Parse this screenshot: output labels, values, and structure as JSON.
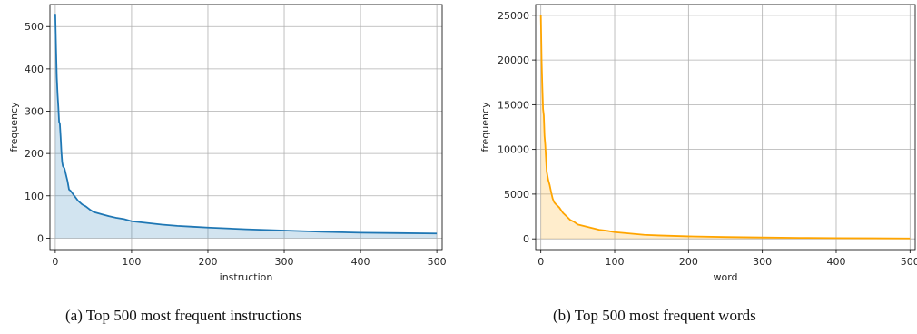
{
  "chart_data": [
    {
      "type": "area",
      "xlabel": "instruction",
      "ylabel": "frequency",
      "xlim": [
        -7,
        507
      ],
      "ylim": [
        -27,
        552
      ],
      "xticks": [
        0,
        100,
        200,
        300,
        400,
        500
      ],
      "yticks": [
        0,
        100,
        200,
        300,
        400,
        500
      ],
      "grid": true,
      "line_color": "#1f77b4",
      "fill_color": "#1f77b4",
      "fill_alpha": 0.2,
      "x": [
        0,
        1,
        2,
        3,
        4,
        5,
        6,
        7,
        8,
        9,
        10,
        12,
        14,
        16,
        18,
        20,
        25,
        30,
        35,
        40,
        45,
        50,
        60,
        70,
        80,
        90,
        100,
        120,
        140,
        160,
        180,
        200,
        250,
        300,
        350,
        400,
        450,
        500
      ],
      "y": [
        530,
        450,
        380,
        340,
        310,
        275,
        270,
        240,
        205,
        180,
        170,
        165,
        150,
        135,
        115,
        112,
        100,
        88,
        80,
        75,
        68,
        62,
        57,
        52,
        48,
        45,
        40,
        36,
        32,
        29,
        27,
        25,
        21,
        18,
        15,
        13,
        12,
        11
      ],
      "caption": "(a) Top 500 most frequent instructions"
    },
    {
      "type": "area",
      "xlabel": "word",
      "ylabel": "frequency",
      "xlim": [
        -7,
        507
      ],
      "ylim": [
        -1200,
        26200
      ],
      "xticks": [
        0,
        100,
        200,
        300,
        400,
        500
      ],
      "yticks": [
        0,
        5000,
        10000,
        15000,
        20000,
        25000
      ],
      "grid": true,
      "line_color": "#ffa500",
      "fill_color": "#ffa500",
      "fill_alpha": 0.2,
      "x": [
        0,
        1,
        2,
        3,
        4,
        5,
        6,
        7,
        8,
        10,
        12,
        14,
        16,
        18,
        20,
        25,
        30,
        35,
        40,
        45,
        50,
        60,
        70,
        80,
        90,
        100,
        120,
        140,
        160,
        200,
        250,
        300,
        350,
        400,
        450,
        500
      ],
      "y": [
        25000,
        20000,
        17000,
        14500,
        13800,
        11500,
        10500,
        9000,
        7500,
        6600,
        6000,
        5200,
        4500,
        4100,
        3900,
        3500,
        2900,
        2500,
        2100,
        1900,
        1600,
        1400,
        1200,
        1000,
        900,
        750,
        600,
        450,
        380,
        280,
        200,
        150,
        110,
        80,
        60,
        40
      ],
      "caption": "(b) Top 500 most frequent words"
    }
  ]
}
